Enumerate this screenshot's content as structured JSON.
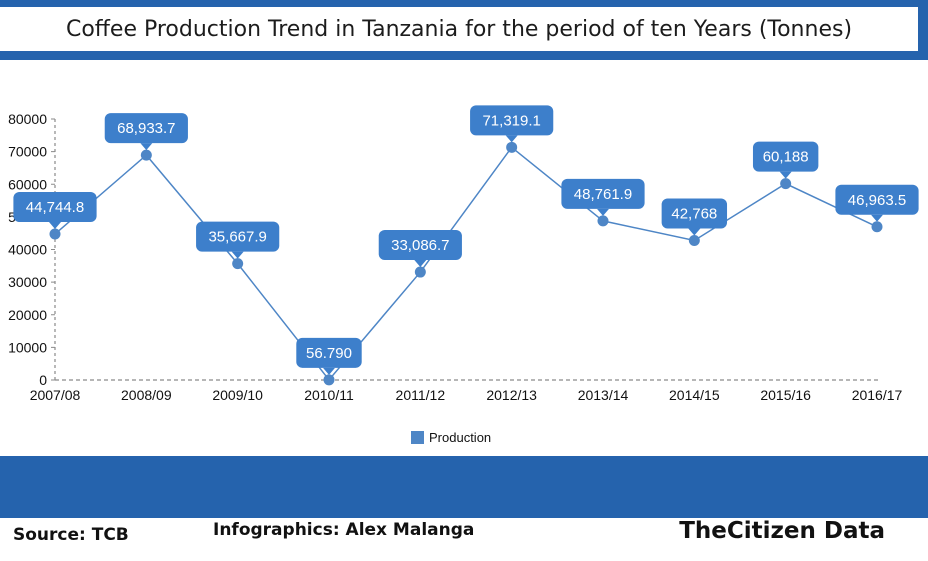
{
  "title": "Coffee Production Trend in Tanzania for the period of ten Years (Tonnes)",
  "footer": {
    "source": "Source: TCB",
    "credit": "Infographics: Alex Malanga",
    "brand": "TheCitizen Data"
  },
  "colors": {
    "band": "#2563ad",
    "series": "#4e86c6",
    "label_box": "#3d7fcb",
    "axis": "#8a8a8a"
  },
  "chart_data": {
    "type": "line",
    "categories": [
      "2007/08",
      "2008/09",
      "2009/10",
      "2010/11",
      "2011/12",
      "2012/13",
      "2013/14",
      "2014/15",
      "2015/16",
      "2016/17"
    ],
    "series": [
      {
        "name": "Production",
        "values": [
          44744.8,
          68933.7,
          35667.9,
          56.79,
          33086.7,
          71319.1,
          48761.9,
          42768,
          60188,
          46963.5
        ],
        "labels": [
          "44,744.8",
          "68,933.7",
          "35,667.9",
          "56.790",
          "33,086.7",
          "71,319.1",
          "48,761.9",
          "42,768",
          "60,188",
          "46,963.5"
        ]
      }
    ],
    "ylim": [
      0,
      80000
    ],
    "yticks": [
      0,
      10000,
      20000,
      30000,
      40000,
      50000,
      60000,
      70000,
      80000
    ],
    "xlabel": "",
    "ylabel": "",
    "legend": "bottom-center",
    "grid": false
  }
}
